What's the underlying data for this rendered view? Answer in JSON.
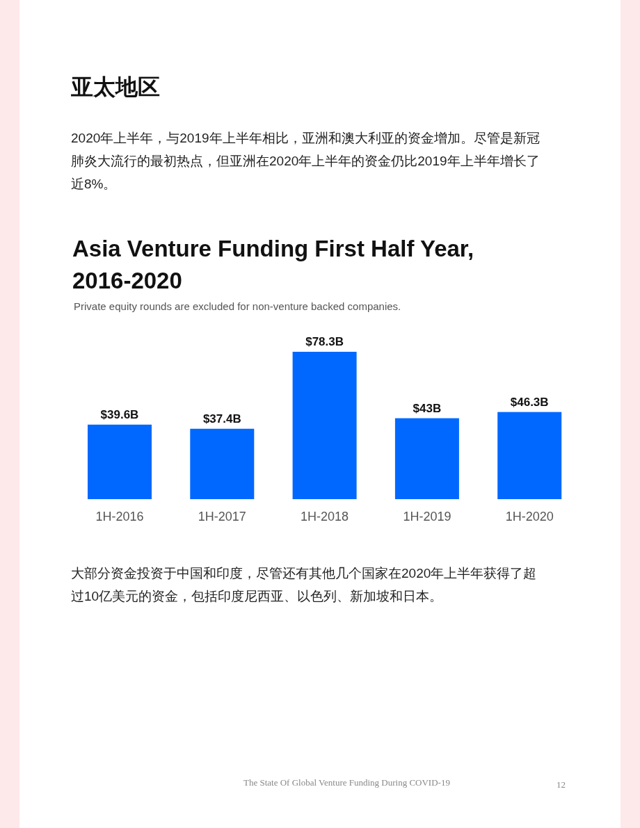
{
  "chart_data": {
    "type": "bar",
    "title": "Asia Venture Funding First Half Year, 2016-2020",
    "subtitle": "Private equity rounds are excluded for non-venture backed companies.",
    "categories": [
      "1H-2016",
      "1H-2017",
      "1H-2018",
      "1H-2019",
      "1H-2020"
    ],
    "values": [
      39.6,
      37.4,
      78.3,
      43,
      46.3
    ],
    "value_labels": [
      "$39.6B",
      "$37.4B",
      "$78.3B",
      "$43B",
      "$46.3B"
    ],
    "color": "#0068ff",
    "annotations": [
      "亚太地区",
      "2020年上半年，与2019年上半年相比，亚洲和澳大利亚的资金增加。尽管是新冠肺炎大流行的最初热点，但亚洲在2020年上半年的资金仍比2019年上半年增长了近8%。",
      "大部分资金投资于中国和印度，尽管还有其他几个国家在2020年上半年获得了超过10亿美元的资金，包括印度尼西亚、以色列、新加坡和日本。",
      "The State Of Global Venture Funding During COVID-19",
      "12"
    ]
  }
}
